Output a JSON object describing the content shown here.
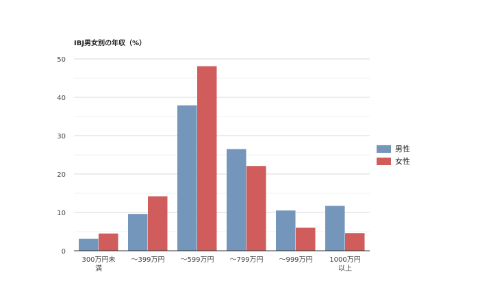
{
  "chart_data": {
    "type": "bar",
    "title": "IBJ男女別の年収（%）",
    "categories": [
      "300万円未満",
      "～399万円",
      "～599万円",
      "～799万円",
      "～999万円",
      "1000万円以上"
    ],
    "series": [
      {
        "name": "男性",
        "color": "#7396ba",
        "values": [
          3.1,
          9.6,
          37.9,
          26.5,
          10.5,
          11.7
        ]
      },
      {
        "name": "女性",
        "color": "#d05c5c",
        "values": [
          4.5,
          14.2,
          48.1,
          22.1,
          6.0,
          4.6
        ]
      }
    ],
    "ylim": [
      0,
      50
    ],
    "yticks": [
      0,
      10,
      20,
      30,
      40,
      50
    ],
    "grid": true,
    "legend": "right"
  }
}
